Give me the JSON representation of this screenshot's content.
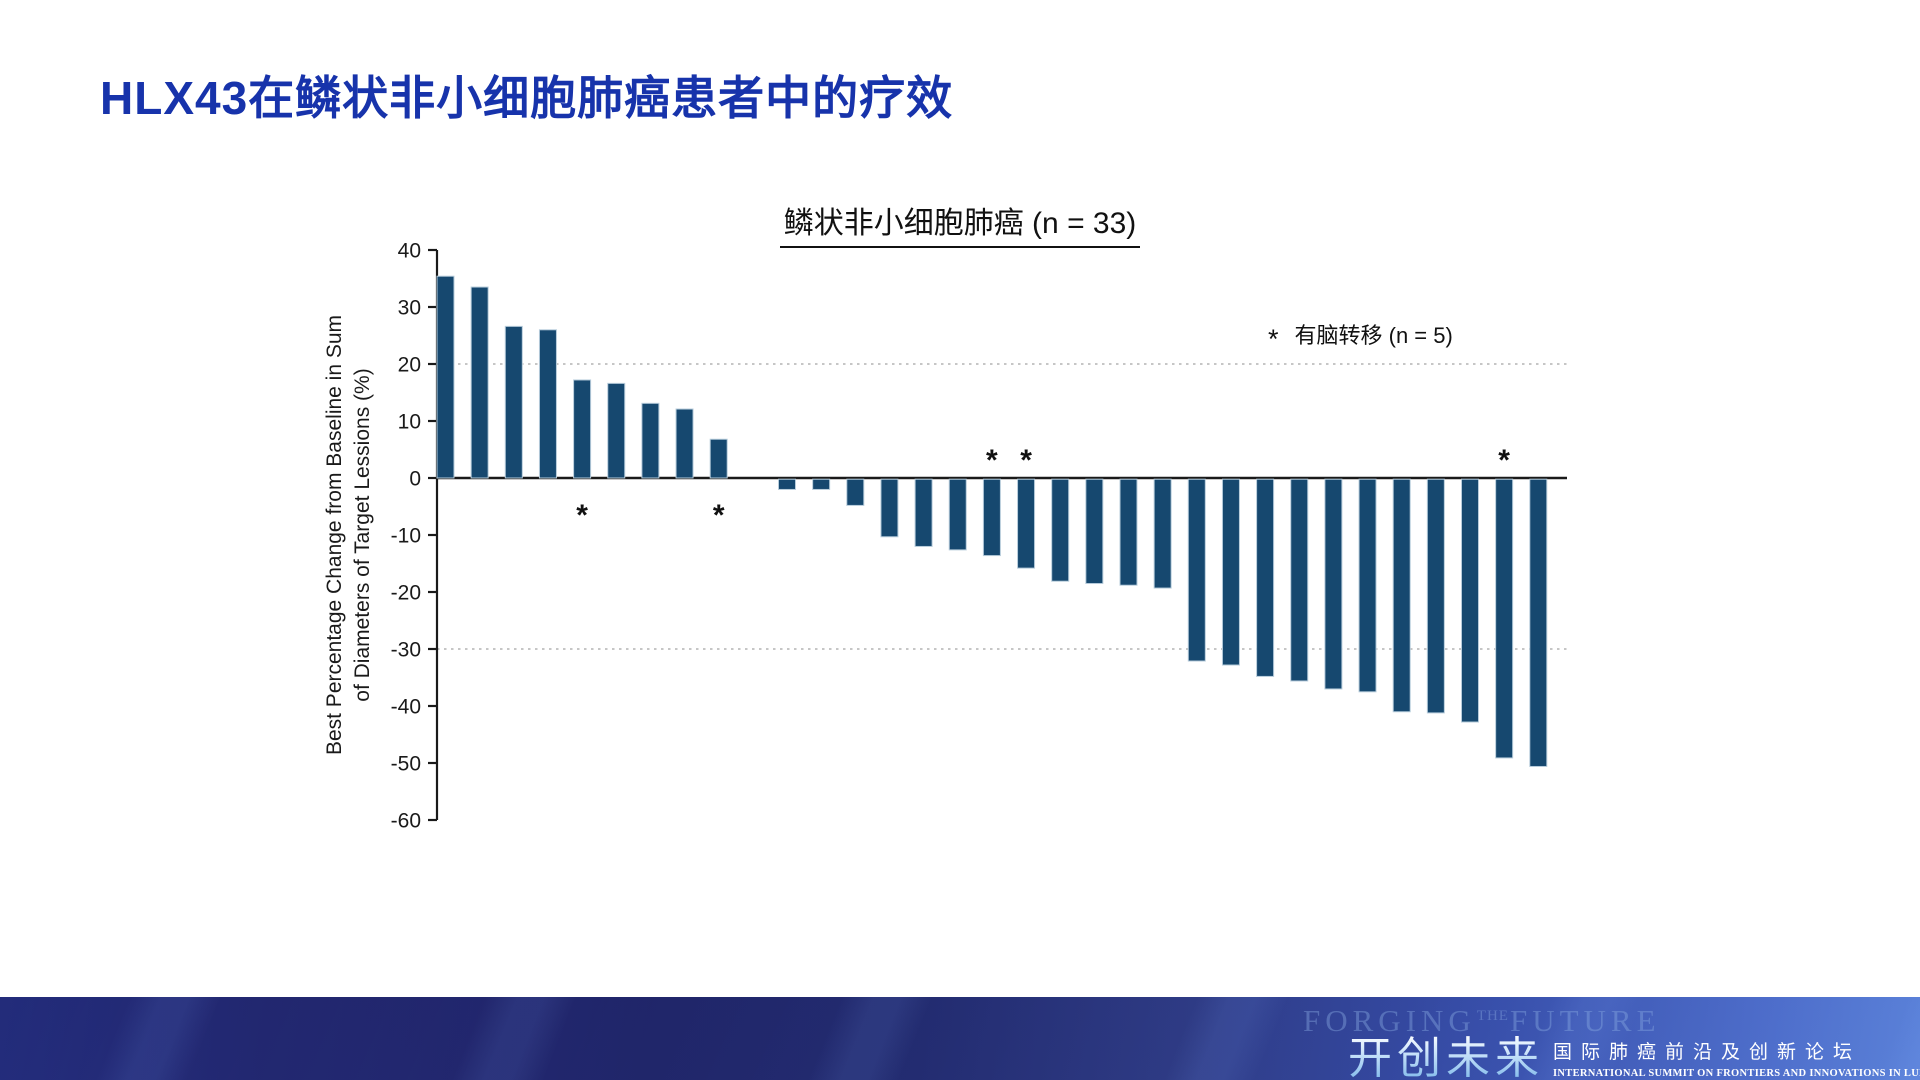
{
  "page": {
    "title": "HLX43在鳞状非小细胞肺癌患者中的疗效"
  },
  "chart_data": {
    "type": "bar",
    "subtype": "waterfall",
    "title": "鳞状非小细胞肺癌 (n = 33)",
    "ylabel_line1": "Best Percentage Change from Baseline in Sum",
    "ylabel_line2": "of Diameters of Target Lessions (%)",
    "ylim": [
      -60,
      40
    ],
    "yticks": [
      40,
      30,
      20,
      10,
      0,
      -10,
      -20,
      -30,
      -40,
      -50,
      -60
    ],
    "dotted_gridlines": [
      20,
      -30
    ],
    "grid_on": false,
    "values": [
      35.4,
      33.5,
      26.6,
      26.0,
      17.2,
      16.6,
      13.1,
      12.1,
      6.8,
      0,
      -1.8,
      -1.8,
      -4.6,
      -10.1,
      -11.8,
      -12.4,
      -13.4,
      -15.6,
      -17.9,
      -18.3,
      -18.6,
      -19.1,
      -31.9,
      -32.6,
      -34.6,
      -35.4,
      -36.8,
      -37.3,
      -40.8,
      -41.0,
      -42.6,
      -48.9,
      -50.4
    ],
    "starred_indices": [
      4,
      8,
      16,
      17,
      31
    ],
    "legend": {
      "symbol": "*",
      "label": "有脑转移 (n = 5)",
      "position": "upper right"
    },
    "bar_color": "#16486F",
    "bar_edge_color": "#B7CCDB",
    "axis_color": "#1A1A1A",
    "grid_color": "#B3B3B3"
  },
  "banner": {
    "watermark_words": [
      "FORGING",
      "THE",
      "FUTURE"
    ],
    "brand_cn": "开创未来",
    "subtitle_cn": "国际肺癌前沿及创新论坛",
    "subtitle_en": "INTERNATIONAL SUMMIT ON FRONTIERS AND INNOVATIONS IN LUNG CANCER"
  },
  "colors": {
    "title_blue": "#1733AB",
    "banner_deep_blue": "#1E2569",
    "banner_bright_blue": "#3A55BD"
  }
}
